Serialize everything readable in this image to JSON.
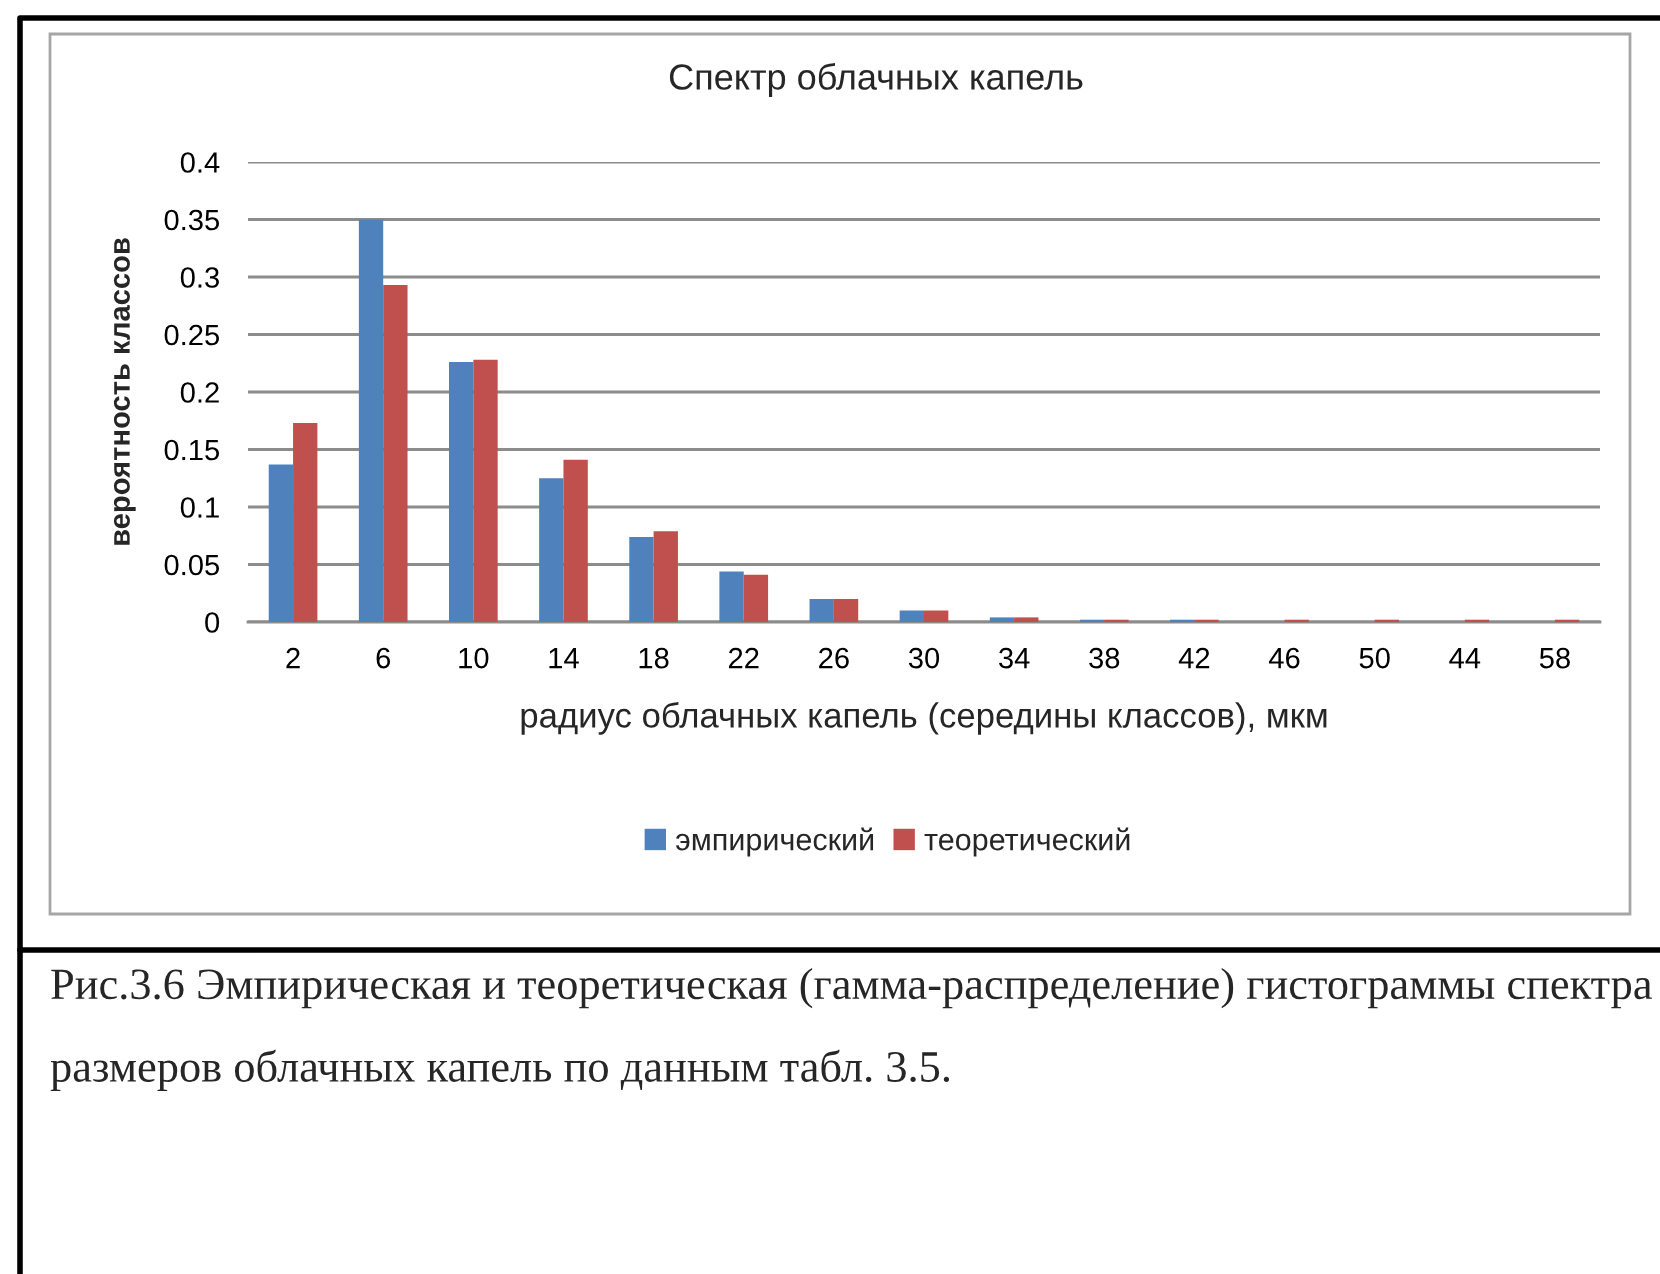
{
  "chart_data": {
    "type": "bar",
    "title": "Спектр облачных капель",
    "xlabel": "радиус облачных капель (середины классов), мкм",
    "ylabel": "вероятность классов",
    "categories": [
      "2",
      "6",
      "10",
      "14",
      "18",
      "22",
      "26",
      "30",
      "34",
      "38",
      "42",
      "46",
      "50",
      "44",
      "58"
    ],
    "series": [
      {
        "name": "эмпирический",
        "color": "#4f81bd",
        "values": [
          0.137,
          0.35,
          0.226,
          0.125,
          0.074,
          0.044,
          0.02,
          0.01,
          0.004,
          0.002,
          0.002,
          0,
          0,
          0,
          0
        ]
      },
      {
        "name": "теоретический",
        "color": "#c0504d",
        "values": [
          0.173,
          0.293,
          0.228,
          0.141,
          0.079,
          0.041,
          0.02,
          0.01,
          0.004,
          0.002,
          0.002,
          0.002,
          0.002,
          0.002,
          0.002
        ]
      }
    ],
    "ylim": [
      0,
      0.4
    ],
    "yticks": [
      0,
      0.05,
      0.1,
      0.15,
      0.2,
      0.25,
      0.3,
      0.35,
      0.4
    ],
    "grid": "y",
    "legend": "bottom",
    "annotations": [
      "Рис.3.6 Эмпирическая и теоретическая (гамма-распределение) гистограммы спектра размеров облачных капель по данным табл. 3.5."
    ]
  }
}
